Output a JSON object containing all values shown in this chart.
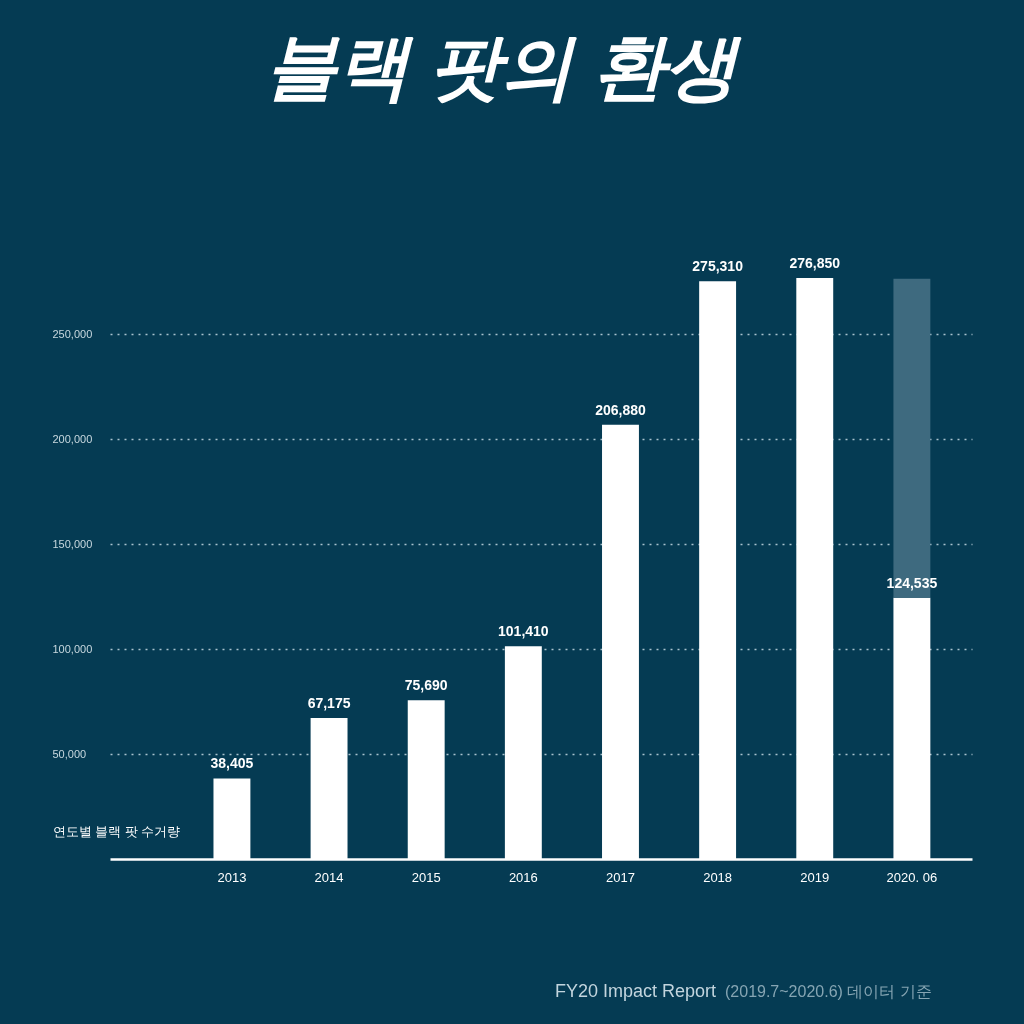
{
  "chart_data": {
    "type": "bar",
    "title": "블랙 팟의 환생",
    "ylabel": "연도별 블랙 팟 수거량",
    "categories": [
      "2013",
      "2014",
      "2015",
      "2016",
      "2017",
      "2018",
      "2019",
      "2020. 06"
    ],
    "series": [
      {
        "color": "#ffffff",
        "values": [
          38405,
          67175,
          75690,
          101410,
          206880,
          275310,
          276850,
          124535
        ],
        "value_labels": [
          "38,405",
          "67,175",
          "75,690",
          "101,410",
          "206,880",
          "275,310",
          "276,850",
          "124,535"
        ]
      },
      {
        "color": "#3e6a7f",
        "values": [
          null,
          null,
          null,
          null,
          null,
          null,
          null,
          152000
        ]
      }
    ],
    "stacked": true,
    "ylim": [
      0,
      276850
    ],
    "yticks": [
      {
        "value": 50000,
        "label": "50,000"
      },
      {
        "value": 100000,
        "label": "100,000"
      },
      {
        "value": 150000,
        "label": "150,000"
      },
      {
        "value": 200000,
        "label": "200,000"
      },
      {
        "value": 250000,
        "label": "250,000"
      }
    ],
    "grid": "y",
    "annotations": [
      "FY20 Impact Report",
      "(2019.7~2020.6) 데이터 기준"
    ]
  }
}
